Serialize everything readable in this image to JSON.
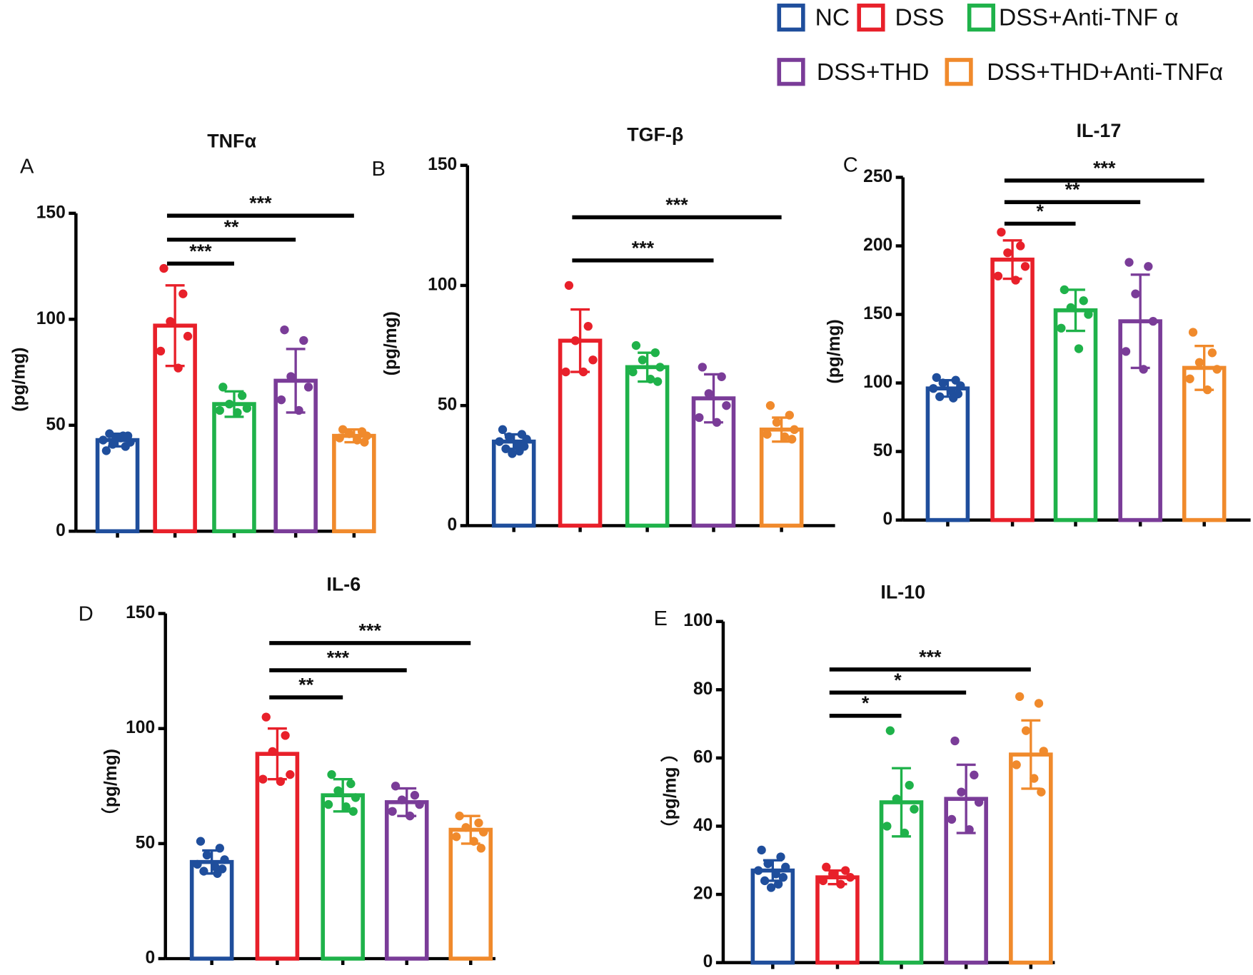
{
  "legend": {
    "entries": [
      {
        "name": "NC",
        "color": "#1f4e9c"
      },
      {
        "name": "DSS",
        "color": "#e8202a"
      },
      {
        "name": "DSS+Anti-TNF α",
        "color": "#1fb24a"
      },
      {
        "name": "DSS+THD",
        "color": "#7a3c98"
      },
      {
        "name": "DSS+THD+Anti-TNFα",
        "color": "#f08a2c"
      }
    ]
  },
  "chart_data": [
    {
      "type": "bar",
      "panel": "A",
      "title": "TNFα",
      "y_label": "(pg/mg)",
      "ylim": [
        0,
        150
      ],
      "yticks": [
        0,
        50,
        100,
        150
      ],
      "values": [
        43,
        97,
        60,
        71,
        45
      ],
      "errors": [
        3,
        19,
        6,
        15,
        3
      ],
      "points": [
        [
          38,
          40,
          41,
          42,
          43,
          44,
          45,
          46,
          45,
          44
        ],
        [
          124,
          112,
          99,
          92,
          85,
          77
        ],
        [
          68,
          64,
          60,
          58,
          57,
          56
        ],
        [
          95,
          90,
          73,
          68,
          62,
          57
        ],
        [
          48,
          47,
          46,
          45,
          44,
          43,
          42
        ]
      ],
      "significance": [
        {
          "from": 1,
          "to": 2,
          "label": "***"
        },
        {
          "from": 1,
          "to": 3,
          "label": "**"
        },
        {
          "from": 1,
          "to": 4,
          "label": "***"
        }
      ]
    },
    {
      "type": "bar",
      "panel": "B",
      "title": "TGF-β",
      "y_label": "(pg/mg)",
      "ylim": [
        0,
        150
      ],
      "yticks": [
        0,
        50,
        100,
        150
      ],
      "values": [
        35,
        77,
        66,
        53,
        40
      ],
      "errors": [
        3,
        13,
        6,
        10,
        5
      ],
      "points": [
        [
          40,
          38,
          37,
          36,
          35,
          34,
          33,
          32,
          31,
          30
        ],
        [
          100,
          83,
          77,
          69,
          64,
          64
        ],
        [
          75,
          72,
          69,
          66,
          64,
          61,
          60
        ],
        [
          66,
          62,
          55,
          50,
          45,
          43
        ],
        [
          50,
          46,
          43,
          40,
          38,
          37,
          36
        ]
      ],
      "significance": [
        {
          "from": 1,
          "to": 3,
          "label": "***"
        },
        {
          "from": 1,
          "to": 4,
          "label": "***"
        }
      ]
    },
    {
      "type": "bar",
      "panel": "C",
      "title": "IL-17",
      "y_label": "(pg/mg)",
      "ylim": [
        0,
        250
      ],
      "yticks": [
        0,
        50,
        100,
        150,
        200,
        250
      ],
      "values": [
        96,
        190,
        153,
        145,
        111
      ],
      "errors": [
        6,
        14,
        15,
        34,
        16
      ],
      "points": [
        [
          104,
          102,
          100,
          98,
          96,
          94,
          92,
          90,
          89
        ],
        [
          210,
          200,
          195,
          185,
          178,
          175
        ],
        [
          168,
          160,
          155,
          150,
          140,
          125
        ],
        [
          188,
          185,
          165,
          145,
          123,
          110
        ],
        [
          137,
          122,
          115,
          110,
          103,
          95
        ]
      ],
      "significance": [
        {
          "from": 1,
          "to": 2,
          "label": "*"
        },
        {
          "from": 1,
          "to": 3,
          "label": "**"
        },
        {
          "from": 1,
          "to": 4,
          "label": "***"
        }
      ]
    },
    {
      "type": "bar",
      "panel": "D",
      "title": "IL-6",
      "y_label": "（pg/mg)",
      "ylim": [
        0,
        150
      ],
      "yticks": [
        0,
        50,
        100,
        150
      ],
      "values": [
        42,
        89,
        71,
        68,
        56
      ],
      "errors": [
        5,
        11,
        7,
        6,
        6
      ],
      "points": [
        [
          51,
          48,
          45,
          43,
          41,
          40,
          39,
          38,
          37
        ],
        [
          105,
          97,
          90,
          80,
          78,
          77
        ],
        [
          80,
          76,
          73,
          70,
          67,
          66,
          64
        ],
        [
          75,
          71,
          69,
          67,
          64,
          62
        ],
        [
          62,
          59,
          57,
          55,
          53,
          51,
          48
        ]
      ],
      "significance": [
        {
          "from": 1,
          "to": 2,
          "label": "**"
        },
        {
          "from": 1,
          "to": 3,
          "label": "***"
        },
        {
          "from": 1,
          "to": 4,
          "label": "***"
        }
      ]
    },
    {
      "type": "bar",
      "panel": "E",
      "title": "IL-10",
      "y_label": "（pg/mg ）",
      "ylim": [
        0,
        100
      ],
      "yticks": [
        0,
        20,
        40,
        60,
        80,
        100
      ],
      "values": [
        27,
        25,
        47,
        48,
        61
      ],
      "errors": [
        3,
        2,
        10,
        10,
        10
      ],
      "points": [
        [
          33,
          31,
          29,
          28,
          27,
          26,
          25,
          24,
          23,
          22
        ],
        [
          28,
          27,
          26,
          25,
          24,
          23
        ],
        [
          68,
          52,
          48,
          45,
          40,
          38
        ],
        [
          65,
          55,
          50,
          47,
          42,
          39
        ],
        [
          78,
          76,
          68,
          62,
          58,
          54,
          50
        ]
      ],
      "significance": [
        {
          "from": 1,
          "to": 2,
          "label": "*"
        },
        {
          "from": 1,
          "to": 3,
          "label": "*"
        },
        {
          "from": 1,
          "to": 4,
          "label": "***"
        }
      ]
    }
  ]
}
